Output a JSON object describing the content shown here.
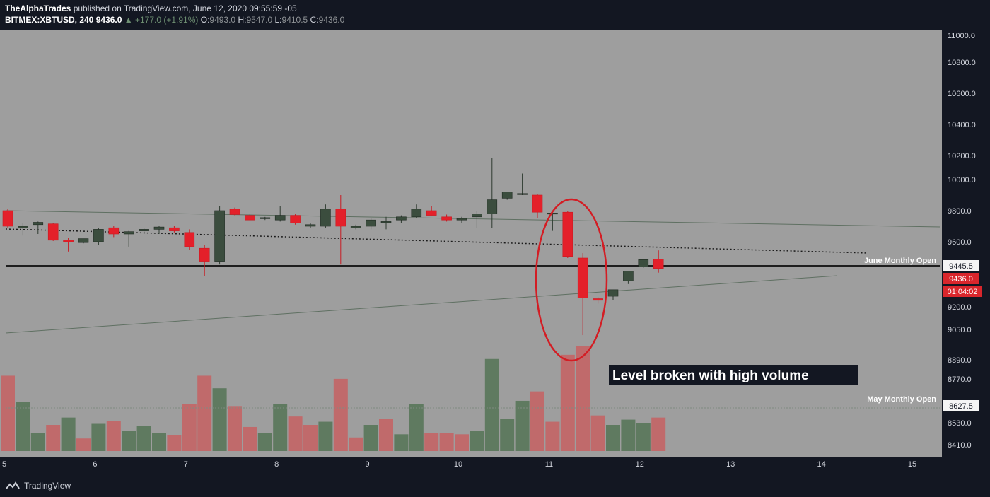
{
  "header": {
    "publisher": "TheAlphaTrades",
    "published_text": "published on TradingView.com, June 12, 2020 09:55:59 -05",
    "symbol": "BITMEX:XBTUSD, 240",
    "last": "9436.0",
    "change": "+177.0 (+1.91%)",
    "o_label": "O:",
    "o": "9493.0",
    "h_label": "H:",
    "h": "9547.0",
    "l_label": "L:",
    "l": "9410.5",
    "c_label": "C:",
    "c": "9436.0"
  },
  "footer": {
    "brand": "TradingView"
  },
  "colors": {
    "bg": "#9e9e9e",
    "up": "#3b4d3e",
    "down": "#e4202a",
    "vol_up": "#5f7a60",
    "vol_down": "#c06a6b",
    "scale_bg": "#131722"
  },
  "chart_data": {
    "type": "candlestick",
    "title": "",
    "x_tick_labels": [
      "5",
      "6",
      "7",
      "8",
      "9",
      "10",
      "11",
      "12",
      "13",
      "14",
      "15"
    ],
    "y_tick_labels": [
      "11000.0",
      "10800.0",
      "10600.0",
      "10400.0",
      "10200.0",
      "10000.0",
      "9800.0",
      "9600.0",
      "9200.0",
      "9050.0",
      "8890.0",
      "8770.0",
      "8530.0",
      "8410.0"
    ],
    "price_levels": [
      {
        "label": "June Monthly Open",
        "value": "9445.5"
      },
      {
        "label": "May Monthly Open",
        "value": "8627.5"
      }
    ],
    "last_price": "9436.0",
    "countdown": "01:04:02",
    "annotation": "Level broken with high volume",
    "candles": [
      {
        "o": 9800,
        "h": 9810,
        "l": 9690,
        "c": 9700
      },
      {
        "o": 9690,
        "h": 9720,
        "l": 9640,
        "c": 9700
      },
      {
        "o": 9710,
        "h": 9730,
        "l": 9650,
        "c": 9725
      },
      {
        "o": 9715,
        "h": 9720,
        "l": 9605,
        "c": 9610
      },
      {
        "o": 9610,
        "h": 9625,
        "l": 9540,
        "c": 9600
      },
      {
        "o": 9595,
        "h": 9620,
        "l": 9590,
        "c": 9620
      },
      {
        "o": 9600,
        "h": 9690,
        "l": 9580,
        "c": 9680
      },
      {
        "o": 9690,
        "h": 9700,
        "l": 9630,
        "c": 9650
      },
      {
        "o": 9650,
        "h": 9670,
        "l": 9570,
        "c": 9665
      },
      {
        "o": 9670,
        "h": 9690,
        "l": 9660,
        "c": 9680
      },
      {
        "o": 9680,
        "h": 9700,
        "l": 9650,
        "c": 9695
      },
      {
        "o": 9690,
        "h": 9700,
        "l": 9660,
        "c": 9670
      },
      {
        "o": 9660,
        "h": 9680,
        "l": 9550,
        "c": 9570
      },
      {
        "o": 9560,
        "h": 9580,
        "l": 9390,
        "c": 9480
      },
      {
        "o": 9480,
        "h": 9830,
        "l": 9460,
        "c": 9800
      },
      {
        "o": 9810,
        "h": 9820,
        "l": 9770,
        "c": 9775
      },
      {
        "o": 9770,
        "h": 9780,
        "l": 9740,
        "c": 9740
      },
      {
        "o": 9750,
        "h": 9760,
        "l": 9740,
        "c": 9755
      },
      {
        "o": 9740,
        "h": 9830,
        "l": 9730,
        "c": 9770
      },
      {
        "o": 9770,
        "h": 9780,
        "l": 9710,
        "c": 9720
      },
      {
        "o": 9700,
        "h": 9720,
        "l": 9690,
        "c": 9710
      },
      {
        "o": 9700,
        "h": 9840,
        "l": 9690,
        "c": 9810
      },
      {
        "o": 9810,
        "h": 9900,
        "l": 9460,
        "c": 9700
      },
      {
        "o": 9690,
        "h": 9710,
        "l": 9680,
        "c": 9700
      },
      {
        "o": 9700,
        "h": 9750,
        "l": 9680,
        "c": 9740
      },
      {
        "o": 9730,
        "h": 9760,
        "l": 9680,
        "c": 9730
      },
      {
        "o": 9740,
        "h": 9770,
        "l": 9720,
        "c": 9760
      },
      {
        "o": 9760,
        "h": 9840,
        "l": 9750,
        "c": 9810
      },
      {
        "o": 9800,
        "h": 9830,
        "l": 9770,
        "c": 9770
      },
      {
        "o": 9760,
        "h": 9775,
        "l": 9730,
        "c": 9740
      },
      {
        "o": 9740,
        "h": 9760,
        "l": 9720,
        "c": 9750
      },
      {
        "o": 9760,
        "h": 9800,
        "l": 9690,
        "c": 9780
      },
      {
        "o": 9780,
        "h": 10180,
        "l": 9690,
        "c": 9870
      },
      {
        "o": 9880,
        "h": 9920,
        "l": 9870,
        "c": 9920
      },
      {
        "o": 9905,
        "h": 10050,
        "l": 9900,
        "c": 9910
      },
      {
        "o": 9900,
        "h": 9905,
        "l": 9750,
        "c": 9790
      },
      {
        "o": 9780,
        "h": 9800,
        "l": 9670,
        "c": 9785
      },
      {
        "o": 9790,
        "h": 9800,
        "l": 9500,
        "c": 9510
      },
      {
        "o": 9500,
        "h": 9530,
        "l": 9020,
        "c": 9255
      },
      {
        "o": 9250,
        "h": 9260,
        "l": 9220,
        "c": 9240
      },
      {
        "o": 9265,
        "h": 9305,
        "l": 9240,
        "c": 9305
      },
      {
        "o": 9360,
        "h": 9420,
        "l": 9340,
        "c": 9420
      },
      {
        "o": 9445,
        "h": 9490,
        "l": 9440,
        "c": 9490
      },
      {
        "o": 9493,
        "h": 9547,
        "l": 9410,
        "c": 9436
      }
    ],
    "volume": [
      {
        "v": 0.72,
        "d": "down"
      },
      {
        "v": 0.47,
        "d": "up"
      },
      {
        "v": 0.17,
        "d": "up"
      },
      {
        "v": 0.25,
        "d": "down"
      },
      {
        "v": 0.32,
        "d": "up"
      },
      {
        "v": 0.12,
        "d": "down"
      },
      {
        "v": 0.26,
        "d": "up"
      },
      {
        "v": 0.29,
        "d": "down"
      },
      {
        "v": 0.19,
        "d": "up"
      },
      {
        "v": 0.24,
        "d": "up"
      },
      {
        "v": 0.17,
        "d": "up"
      },
      {
        "v": 0.15,
        "d": "down"
      },
      {
        "v": 0.45,
        "d": "down"
      },
      {
        "v": 0.72,
        "d": "down"
      },
      {
        "v": 0.6,
        "d": "up"
      },
      {
        "v": 0.43,
        "d": "down"
      },
      {
        "v": 0.23,
        "d": "down"
      },
      {
        "v": 0.17,
        "d": "up"
      },
      {
        "v": 0.45,
        "d": "up"
      },
      {
        "v": 0.33,
        "d": "down"
      },
      {
        "v": 0.25,
        "d": "down"
      },
      {
        "v": 0.28,
        "d": "up"
      },
      {
        "v": 0.69,
        "d": "down"
      },
      {
        "v": 0.13,
        "d": "down"
      },
      {
        "v": 0.25,
        "d": "up"
      },
      {
        "v": 0.31,
        "d": "down"
      },
      {
        "v": 0.16,
        "d": "up"
      },
      {
        "v": 0.45,
        "d": "up"
      },
      {
        "v": 0.17,
        "d": "down"
      },
      {
        "v": 0.17,
        "d": "down"
      },
      {
        "v": 0.16,
        "d": "down"
      },
      {
        "v": 0.19,
        "d": "up"
      },
      {
        "v": 0.88,
        "d": "up"
      },
      {
        "v": 0.31,
        "d": "up"
      },
      {
        "v": 0.48,
        "d": "up"
      },
      {
        "v": 0.57,
        "d": "down"
      },
      {
        "v": 0.28,
        "d": "down"
      },
      {
        "v": 0.92,
        "d": "down"
      },
      {
        "v": 1.0,
        "d": "down"
      },
      {
        "v": 0.34,
        "d": "down"
      },
      {
        "v": 0.25,
        "d": "up"
      },
      {
        "v": 0.3,
        "d": "up"
      },
      {
        "v": 0.27,
        "d": "up"
      },
      {
        "v": 0.32,
        "d": "down"
      }
    ]
  }
}
